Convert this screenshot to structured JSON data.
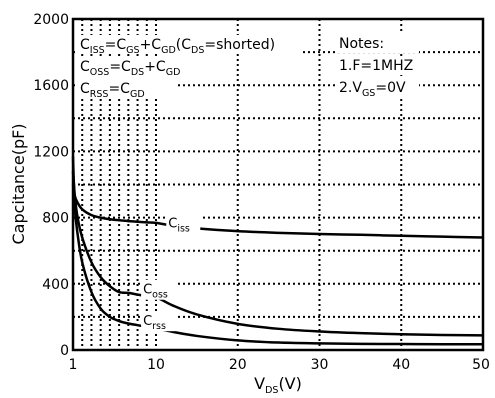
{
  "chart_data": {
    "type": "line",
    "xlabel": {
      "main": "V",
      "sub": "DS",
      "tail": "(V)"
    },
    "ylabel": "Capcitance(pF)",
    "xlim": [
      1,
      50
    ],
    "ylim": [
      0,
      2000
    ],
    "x_ticks": [
      1,
      10,
      20,
      30,
      40,
      50
    ],
    "y_ticks": [
      0,
      400,
      800,
      1200,
      1600,
      2000
    ],
    "x_tick_labels": [
      "1",
      "10",
      "20",
      "30",
      "40",
      "50"
    ],
    "y_tick_labels": [
      "0",
      "400",
      "800",
      "1200",
      "1600",
      "2000"
    ],
    "grid": "dotted",
    "legend_definitions": [
      {
        "parts": [
          {
            "t": "C"
          },
          {
            "t": "ISS",
            "sub": true
          },
          {
            "t": "=C"
          },
          {
            "t": "GS",
            "sub": true
          },
          {
            "t": "+C"
          },
          {
            "t": "GD",
            "sub": true
          },
          {
            "t": "(C"
          },
          {
            "t": "DS",
            "sub": true
          },
          {
            "t": "=shorted)"
          }
        ]
      },
      {
        "parts": [
          {
            "t": "C"
          },
          {
            "t": "OSS",
            "sub": true
          },
          {
            "t": "=C"
          },
          {
            "t": "DS",
            "sub": true
          },
          {
            "t": "+C"
          },
          {
            "t": "GD",
            "sub": true
          }
        ]
      },
      {
        "parts": [
          {
            "t": "C"
          },
          {
            "t": "RSS",
            "sub": true
          },
          {
            "t": "=C"
          },
          {
            "t": "GD",
            "sub": true
          }
        ]
      }
    ],
    "notes": [
      {
        "parts": [
          {
            "t": "Notes:"
          }
        ]
      },
      {
        "parts": [
          {
            "t": "1.F=1MHZ"
          }
        ]
      },
      {
        "parts": [
          {
            "t": "2.V"
          },
          {
            "t": "GS",
            "sub": true
          },
          {
            "t": "=0V"
          }
        ]
      }
    ],
    "series": [
      {
        "label_main": "C",
        "label_sub": "iss",
        "color": "#000000",
        "x": [
          1,
          1.2,
          1.5,
          2,
          3,
          4,
          5,
          6,
          7,
          8,
          9,
          10,
          12,
          15,
          20,
          25,
          30,
          35,
          40,
          45,
          50
        ],
        "y": [
          1000,
          930,
          890,
          850,
          815,
          800,
          790,
          784,
          779,
          775,
          771,
          768,
          752,
          735,
          718,
          708,
          701,
          696,
          690,
          685,
          680
        ]
      },
      {
        "label_main": "C",
        "label_sub": "oss",
        "color": "#000000",
        "x": [
          1,
          1.2,
          1.5,
          2,
          3,
          4,
          5,
          6,
          7,
          8,
          9,
          10,
          12,
          15,
          20,
          25,
          30,
          35,
          40,
          45,
          50
        ],
        "y": [
          1080,
          930,
          800,
          680,
          530,
          440,
          385,
          350,
          345,
          335,
          325,
          320,
          270,
          215,
          158,
          128,
          112,
          102,
          95,
          91,
          88
        ]
      },
      {
        "label_main": "C",
        "label_sub": "rss",
        "color": "#000000",
        "x": [
          1,
          1.2,
          1.5,
          2,
          3,
          4,
          5,
          6,
          7,
          8,
          9,
          10,
          12,
          15,
          20,
          25,
          30,
          35,
          40,
          45,
          50
        ],
        "y": [
          1170,
          860,
          700,
          530,
          350,
          250,
          200,
          175,
          160,
          150,
          140,
          130,
          110,
          85,
          58,
          45,
          40,
          37,
          36,
          35,
          35
        ]
      }
    ]
  }
}
